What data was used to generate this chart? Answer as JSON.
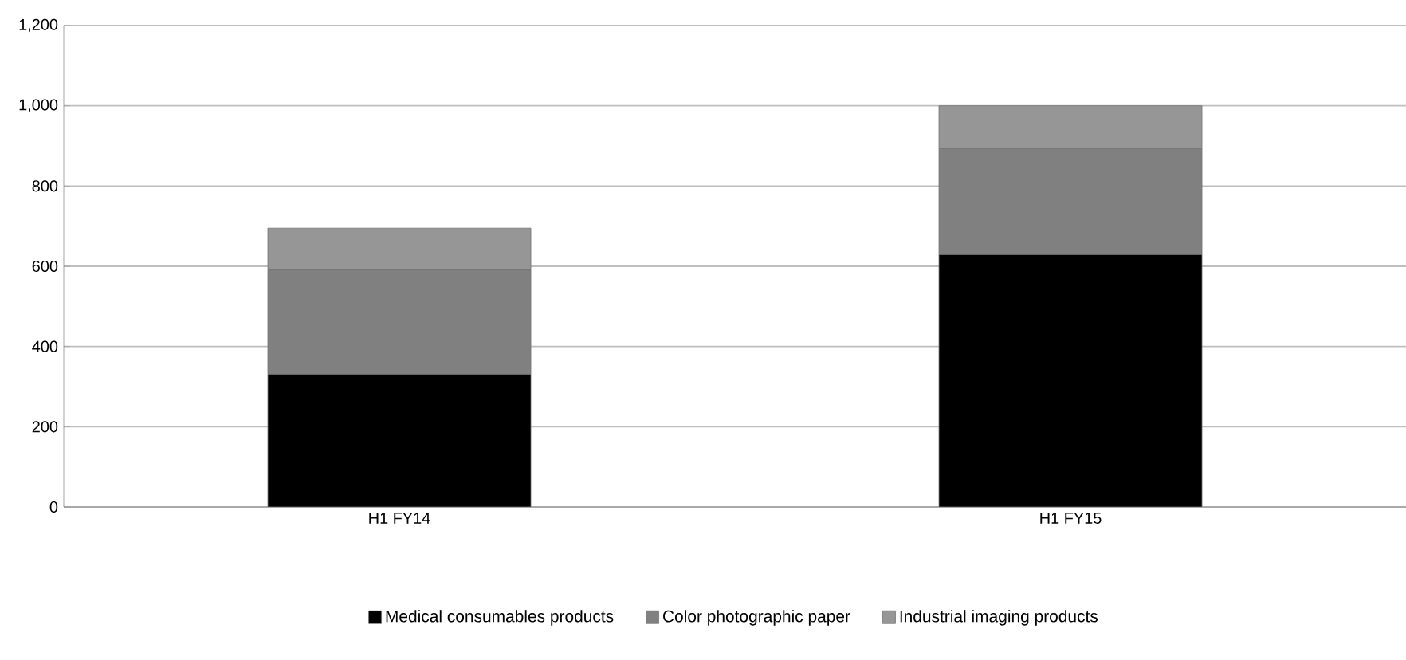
{
  "chart_data": {
    "type": "bar",
    "stacked": true,
    "categories": [
      "H1 FY14",
      "H1 FY15"
    ],
    "series": [
      {
        "name": "Medical consumables products",
        "color": "#000000",
        "values": [
          331,
          629
        ]
      },
      {
        "name": "Color photographic paper",
        "color": "#808080",
        "values": [
          260,
          264
        ]
      },
      {
        "name": "Industrial imaging products",
        "color": "#969696",
        "values": [
          104,
          107
        ]
      }
    ],
    "ylim": [
      0,
      1200
    ],
    "yticks": [
      {
        "value": 0,
        "label": "0"
      },
      {
        "value": 200,
        "label": "200"
      },
      {
        "value": 400,
        "label": "400"
      },
      {
        "value": 600,
        "label": "600"
      },
      {
        "value": 800,
        "label": "800"
      },
      {
        "value": 1000,
        "label": "1,000"
      },
      {
        "value": 1200,
        "label": "1,200"
      }
    ],
    "grid": "y",
    "legend": "bottom"
  }
}
